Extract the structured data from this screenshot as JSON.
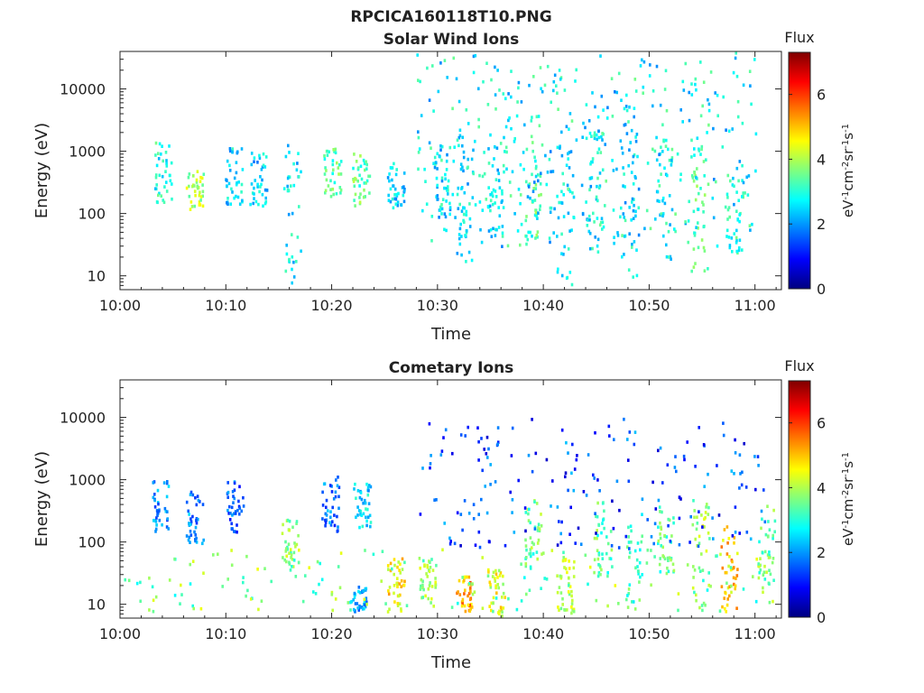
{
  "figure_title": "RPCICA160118T10.PNG",
  "colors": {
    "background": "#ffffff",
    "axis": "#222222",
    "colormap": [
      "#00007f",
      "#0000ff",
      "#007fff",
      "#00ffff",
      "#7fff7f",
      "#ffff00",
      "#ff7f00",
      "#ff0000",
      "#7f0000"
    ]
  },
  "chart_data": [
    {
      "type": "heatmap",
      "title": "Solar Wind Ions",
      "xlabel": "Time",
      "ylabel": "Energy (eV)",
      "x_ticks": [
        "10:00",
        "10:10",
        "10:20",
        "10:30",
        "10:40",
        "10:50",
        "11:00"
      ],
      "x_range_minutes": [
        0,
        62.5
      ],
      "yscale": "log",
      "ylim": [
        6,
        40000
      ],
      "y_ticks": [
        10,
        100,
        1000,
        10000
      ],
      "y_tick_labels": [
        "10",
        "100",
        "1000",
        "10000"
      ],
      "colorbar": {
        "label": "Flux",
        "unit_label": "eV-1cm-2sr-1s-1",
        "ticks": [
          "0",
          "2",
          "4",
          "6"
        ],
        "range": [
          0,
          7.3
        ]
      },
      "clusters": [
        {
          "t": 4.0,
          "e_lo": 150,
          "e_hi": 1500,
          "level": 2.9
        },
        {
          "t": 7.0,
          "e_lo": 110,
          "e_hi": 500,
          "level": 4.0
        },
        {
          "t": 10.7,
          "e_lo": 150,
          "e_hi": 1200,
          "level": 2.5
        },
        {
          "t": 13.0,
          "e_lo": 130,
          "e_hi": 1100,
          "level": 2.4
        },
        {
          "t": 16.2,
          "e_lo": 8,
          "e_hi": 1400,
          "level": 2.6
        },
        {
          "t": 20.0,
          "e_lo": 200,
          "e_hi": 1200,
          "level": 3.3
        },
        {
          "t": 22.7,
          "e_lo": 140,
          "e_hi": 1100,
          "level": 3.4
        },
        {
          "t": 26.0,
          "e_lo": 130,
          "e_hi": 700,
          "level": 2.4
        },
        {
          "t": 30.3,
          "e_lo": 90,
          "e_hi": 1300,
          "level": 2.5
        },
        {
          "t": 32.5,
          "e_lo": 18,
          "e_hi": 3000,
          "level": 2.6
        },
        {
          "t": 35.5,
          "e_lo": 40,
          "e_hi": 1500,
          "level": 2.6
        },
        {
          "t": 39.0,
          "e_lo": 40,
          "e_hi": 1500,
          "level": 3.3
        },
        {
          "t": 42.0,
          "e_lo": 6,
          "e_hi": 1400,
          "level": 2.6
        },
        {
          "t": 45.0,
          "e_lo": 25,
          "e_hi": 3000,
          "level": 2.7
        },
        {
          "t": 48.0,
          "e_lo": 10,
          "e_hi": 10000,
          "level": 2.6
        },
        {
          "t": 51.3,
          "e_lo": 18,
          "e_hi": 2000,
          "level": 2.8
        },
        {
          "t": 54.7,
          "e_lo": 8,
          "e_hi": 1300,
          "level": 3.3
        },
        {
          "t": 58.0,
          "e_lo": 20,
          "e_hi": 500,
          "level": 3.0
        }
      ],
      "sparse": [
        {
          "t_lo": 28,
          "t_hi": 60,
          "e_lo": 30,
          "e_hi": 40000,
          "count": 420,
          "level": 2.7
        }
      ]
    },
    {
      "type": "heatmap",
      "title": "Cometary Ions",
      "xlabel": "Time",
      "ylabel": "Energy (eV)",
      "x_ticks": [
        "10:00",
        "10:10",
        "10:20",
        "10:30",
        "10:40",
        "10:50",
        "11:00"
      ],
      "x_range_minutes": [
        0,
        62.5
      ],
      "yscale": "log",
      "ylim": [
        6,
        40000
      ],
      "y_ticks": [
        10,
        100,
        1000,
        10000
      ],
      "y_tick_labels": [
        "10",
        "100",
        "1000",
        "10000"
      ],
      "colorbar": {
        "label": "Flux",
        "unit_label": "eV-1cm-2sr-1s-1",
        "ticks": [
          "0",
          "2",
          "4",
          "6"
        ],
        "range": [
          0,
          7.3
        ]
      },
      "clusters": [
        {
          "t": 3.8,
          "e_lo": 150,
          "e_hi": 1000,
          "level": 1.9
        },
        {
          "t": 7.0,
          "e_lo": 100,
          "e_hi": 700,
          "level": 1.9
        },
        {
          "t": 10.8,
          "e_lo": 150,
          "e_hi": 1000,
          "level": 1.6
        },
        {
          "t": 16.0,
          "e_lo": 40,
          "e_hi": 250,
          "level": 3.8
        },
        {
          "t": 19.8,
          "e_lo": 150,
          "e_hi": 1300,
          "level": 1.8
        },
        {
          "t": 22.8,
          "e_lo": 180,
          "e_hi": 900,
          "level": 2.5
        },
        {
          "t": 22.4,
          "e_lo": 8,
          "e_hi": 20,
          "level": 2.0
        },
        {
          "t": 26.0,
          "e_lo": 8,
          "e_hi": 60,
          "level": 4.6
        },
        {
          "t": 29.0,
          "e_lo": 8,
          "e_hi": 60,
          "level": 3.8
        },
        {
          "t": 32.5,
          "e_lo": 8,
          "e_hi": 30,
          "level": 5.2
        },
        {
          "t": 35.5,
          "e_lo": 6,
          "e_hi": 40,
          "level": 4.4
        },
        {
          "t": 39.0,
          "e_lo": 40,
          "e_hi": 500,
          "level": 3.5
        },
        {
          "t": 42.0,
          "e_lo": 6,
          "e_hi": 60,
          "level": 4.0
        },
        {
          "t": 45.5,
          "e_lo": 30,
          "e_hi": 500,
          "level": 3.4
        },
        {
          "t": 48.5,
          "e_lo": 6,
          "e_hi": 300,
          "level": 3.2
        },
        {
          "t": 51.5,
          "e_lo": 30,
          "e_hi": 400,
          "level": 3.4
        },
        {
          "t": 54.8,
          "e_lo": 8,
          "e_hi": 500,
          "level": 3.8
        },
        {
          "t": 57.5,
          "e_lo": 8,
          "e_hi": 200,
          "level": 5.0
        },
        {
          "t": 61.0,
          "e_lo": 20,
          "e_hi": 400,
          "level": 3.6
        }
      ],
      "sparse": [
        {
          "t_lo": 0,
          "t_hi": 62,
          "e_lo": 8,
          "e_hi": 80,
          "count": 170,
          "level": 3.6
        },
        {
          "t_lo": 28,
          "t_hi": 61,
          "e_lo": 80,
          "e_hi": 10000,
          "count": 190,
          "level": 1.4
        }
      ]
    }
  ]
}
